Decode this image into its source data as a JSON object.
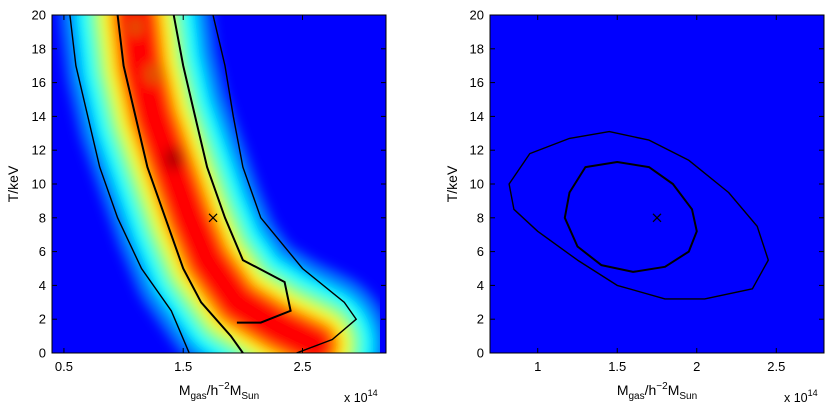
{
  "chart_data": [
    {
      "type": "heatmap",
      "panel": "left",
      "xlabel": {
        "base": "M",
        "sub": "gas",
        "mid": "/h",
        "sup": "−2",
        "base2": "M",
        "sub2": "Sun"
      },
      "ylabel": "T/keV",
      "x_multiplier": {
        "prefix": "x 10",
        "exp": "14"
      },
      "xlim": [
        0.4,
        3.2
      ],
      "ylim": [
        0,
        20
      ],
      "xticks": [
        0.5,
        1.5,
        2.5
      ],
      "xtick_labels": [
        "0.5",
        "1.5",
        "2.5"
      ],
      "yticks": [
        0,
        2,
        4,
        6,
        8,
        10,
        12,
        14,
        16,
        18,
        20
      ],
      "ytick_labels": [
        "0",
        "2",
        "4",
        "6",
        "8",
        "10",
        "12",
        "14",
        "16",
        "18",
        "20"
      ],
      "marker": {
        "symbol": "x",
        "x": 1.75,
        "y": 8
      },
      "peak": {
        "x": 1.6,
        "y": 6.5
      },
      "ridge": [
        [
          1.1,
          20
        ],
        [
          1.15,
          17
        ],
        [
          1.25,
          14
        ],
        [
          1.4,
          11
        ],
        [
          1.55,
          8
        ],
        [
          1.7,
          5.5
        ],
        [
          1.95,
          3
        ],
        [
          2.3,
          1.5
        ],
        [
          2.6,
          0.5
        ]
      ],
      "contour_inner": {
        "left": [
          [
            0.95,
            20
          ],
          [
            1.0,
            17
          ],
          [
            1.1,
            14
          ],
          [
            1.2,
            11
          ],
          [
            1.35,
            8
          ],
          [
            1.5,
            5
          ],
          [
            1.65,
            3
          ],
          [
            1.9,
            1
          ],
          [
            2.0,
            0
          ]
        ],
        "right": [
          [
            1.42,
            20
          ],
          [
            1.5,
            17
          ],
          [
            1.6,
            14
          ],
          [
            1.7,
            11
          ],
          [
            1.85,
            8
          ],
          [
            2.0,
            5.5
          ],
          [
            2.35,
            4.2
          ],
          [
            2.4,
            2.5
          ],
          [
            2.15,
            1.8
          ],
          [
            1.95,
            1.8
          ]
        ]
      },
      "contour_outer": {
        "left": [
          [
            0.55,
            20
          ],
          [
            0.6,
            17
          ],
          [
            0.7,
            14
          ],
          [
            0.8,
            11
          ],
          [
            0.95,
            8
          ],
          [
            1.15,
            5
          ],
          [
            1.4,
            2.5
          ],
          [
            1.55,
            0
          ]
        ],
        "right": [
          [
            1.75,
            20
          ],
          [
            1.85,
            17
          ],
          [
            1.92,
            14
          ],
          [
            2.0,
            11
          ],
          [
            2.15,
            8
          ],
          [
            2.5,
            5
          ],
          [
            2.85,
            3
          ],
          [
            2.95,
            2.0
          ],
          [
            2.75,
            0.8
          ],
          [
            2.45,
            0
          ]
        ]
      }
    },
    {
      "type": "heatmap",
      "panel": "right",
      "xlabel": {
        "base": "M",
        "sub": "gas",
        "mid": "/h",
        "sup": "−2",
        "base2": "M",
        "sub2": "Sun"
      },
      "ylabel": "T/keV",
      "x_multiplier": {
        "prefix": "x 10",
        "exp": "14"
      },
      "xlim": [
        0.7,
        2.8
      ],
      "ylim": [
        0,
        20
      ],
      "xticks": [
        1,
        1.5,
        2,
        2.5
      ],
      "xtick_labels": [
        "1",
        "1.5",
        "2",
        "2.5"
      ],
      "yticks": [
        0,
        2,
        4,
        6,
        8,
        10,
        12,
        14,
        16,
        18,
        20
      ],
      "ytick_labels": [
        "0",
        "2",
        "4",
        "6",
        "8",
        "10",
        "12",
        "14",
        "16",
        "18",
        "20"
      ],
      "marker": {
        "symbol": "x",
        "x": 1.75,
        "y": 8
      },
      "peak": {
        "x": 1.52,
        "y": 8.1
      },
      "contour_inner": [
        [
          1.2,
          9.5
        ],
        [
          1.3,
          11
        ],
        [
          1.5,
          11.3
        ],
        [
          1.7,
          11
        ],
        [
          1.85,
          10
        ],
        [
          1.97,
          8.5
        ],
        [
          2.0,
          7.2
        ],
        [
          1.95,
          6
        ],
        [
          1.8,
          5.1
        ],
        [
          1.6,
          4.8
        ],
        [
          1.4,
          5.2
        ],
        [
          1.25,
          6.3
        ],
        [
          1.17,
          8
        ]
      ],
      "contour_outer": [
        [
          0.82,
          10
        ],
        [
          0.95,
          11.8
        ],
        [
          1.2,
          12.7
        ],
        [
          1.45,
          13.1
        ],
        [
          1.7,
          12.6
        ],
        [
          1.95,
          11.4
        ],
        [
          2.2,
          9.5
        ],
        [
          2.38,
          7.5
        ],
        [
          2.45,
          5.5
        ],
        [
          2.35,
          3.8
        ],
        [
          2.05,
          3.2
        ],
        [
          1.8,
          3.2
        ],
        [
          1.5,
          4.0
        ],
        [
          1.25,
          5.5
        ],
        [
          1.0,
          7.2
        ],
        [
          0.85,
          8.5
        ]
      ]
    }
  ],
  "colormap": [
    "#00008f",
    "#0000ff",
    "#0080ff",
    "#00ffff",
    "#80ff80",
    "#ffff00",
    "#ff8000",
    "#ff0000",
    "#800000"
  ]
}
